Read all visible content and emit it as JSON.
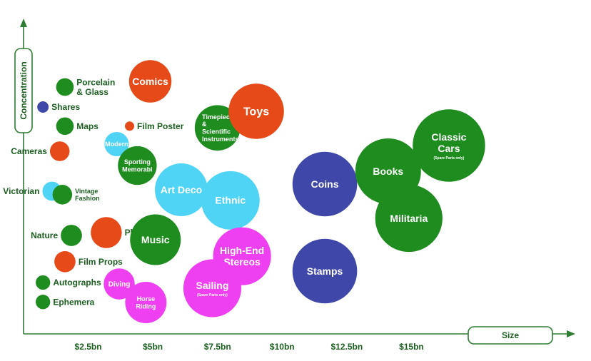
{
  "chart_data": {
    "type": "scatter",
    "xlabel": "Size",
    "ylabel": "Concentration",
    "x_ticks": [
      {
        "value": 2.5,
        "label": "$2.5bn"
      },
      {
        "value": 5,
        "label": "$5bn"
      },
      {
        "value": 7.5,
        "label": "$7.5bn"
      },
      {
        "value": 10,
        "label": "$10bn"
      },
      {
        "value": 12.5,
        "label": "$12.5bn"
      },
      {
        "value": 15,
        "label": "$15bn"
      }
    ],
    "xlim": [
      0,
      22
    ],
    "ylim": [
      0,
      10
    ],
    "colors": {
      "green": "#1e8c1e",
      "red": "#e64a19",
      "blue": "#3f48a8",
      "cyan": "#4fd4f5",
      "magenta": "#ee3ff0",
      "axis": "#2e7d32"
    },
    "points": [
      {
        "label": "Porcelain\n& Glass",
        "x": 1.6,
        "y": 8.65,
        "r": 0.34,
        "color": "green",
        "label_pos": "right",
        "font": 12,
        "text": "dark"
      },
      {
        "label": "Shares",
        "x": 0.75,
        "y": 7.95,
        "r": 0.22,
        "color": "blue",
        "label_pos": "right",
        "font": 12,
        "text": "dark"
      },
      {
        "label": "Maps",
        "x": 1.6,
        "y": 7.28,
        "r": 0.34,
        "color": "green",
        "label_pos": "right",
        "font": 12,
        "text": "dark"
      },
      {
        "label": "Film Poster",
        "x": 4.1,
        "y": 7.28,
        "r": 0.18,
        "color": "red",
        "label_pos": "right",
        "font": 12,
        "text": "dark"
      },
      {
        "label": "Comics",
        "x": 4.9,
        "y": 8.85,
        "r": 0.82,
        "color": "red",
        "label_pos": "center",
        "font": 14,
        "text": "light"
      },
      {
        "label": "Timepieces\n&\nScientific\nInstruments",
        "x": 7.5,
        "y": 7.22,
        "r": 0.88,
        "color": "green",
        "label_pos": "center",
        "font": 9,
        "text": "light",
        "align": "left"
      },
      {
        "label": "Toys",
        "x": 9.0,
        "y": 7.8,
        "r": 1.07,
        "color": "red",
        "label_pos": "center",
        "font": 16,
        "text": "light"
      },
      {
        "label": "Cameras",
        "x": 1.4,
        "y": 6.4,
        "r": 0.38,
        "color": "red",
        "label_pos": "left",
        "font": 12,
        "text": "dark"
      },
      {
        "label": "Modern",
        "x": 3.6,
        "y": 6.65,
        "r": 0.47,
        "color": "cyan",
        "label_pos": "center",
        "font": 9,
        "text": "light"
      },
      {
        "label": "Sporting\nMemorabi",
        "x": 4.4,
        "y": 5.9,
        "r": 0.75,
        "color": "green",
        "label_pos": "center",
        "font": 9,
        "text": "light"
      },
      {
        "label": "Victorian",
        "x": 1.1,
        "y": 5.0,
        "r": 0.37,
        "color": "cyan",
        "label_pos": "left",
        "font": 12,
        "text": "dark"
      },
      {
        "label": "Vintage\nFashion",
        "x": 1.5,
        "y": 4.88,
        "r": 0.38,
        "color": "green",
        "label_pos": "right",
        "font": 9,
        "text": "dark"
      },
      {
        "label": "Art Deco",
        "x": 6.1,
        "y": 5.05,
        "r": 1.02,
        "color": "cyan",
        "label_pos": "center",
        "font": 14,
        "text": "light"
      },
      {
        "label": "Ethnic",
        "x": 8.0,
        "y": 4.68,
        "r": 1.13,
        "color": "cyan",
        "label_pos": "center",
        "font": 14,
        "text": "light"
      },
      {
        "label": "Nature",
        "x": 1.85,
        "y": 3.45,
        "r": 0.41,
        "color": "green",
        "label_pos": "left",
        "font": 12,
        "text": "dark"
      },
      {
        "label": "Photos",
        "x": 3.2,
        "y": 3.55,
        "r": 0.6,
        "color": "red",
        "label_pos": "right",
        "font": 12,
        "text": "dark"
      },
      {
        "label": "Music",
        "x": 5.1,
        "y": 3.3,
        "r": 0.98,
        "color": "green",
        "label_pos": "center",
        "font": 14,
        "text": "light"
      },
      {
        "label": "High-End\nStereos",
        "x": 8.45,
        "y": 2.72,
        "r": 1.12,
        "color": "magenta",
        "label_pos": "center",
        "font": 14,
        "text": "light"
      },
      {
        "label": "Film Props",
        "x": 1.6,
        "y": 2.53,
        "r": 0.41,
        "color": "red",
        "label_pos": "right",
        "font": 12,
        "text": "dark"
      },
      {
        "label": "Autographs",
        "x": 0.75,
        "y": 1.8,
        "r": 0.28,
        "color": "green",
        "label_pos": "right",
        "font": 12,
        "text": "dark"
      },
      {
        "label": "Diving",
        "x": 3.7,
        "y": 1.75,
        "r": 0.6,
        "color": "magenta",
        "label_pos": "center",
        "font": 10,
        "text": "light"
      },
      {
        "label": "Horse\nRiding",
        "x": 4.73,
        "y": 1.1,
        "r": 0.8,
        "color": "magenta",
        "label_pos": "center",
        "font": 9,
        "text": "light"
      },
      {
        "label": "Sailing",
        "x": 7.3,
        "y": 1.6,
        "r": 1.12,
        "color": "magenta",
        "label_pos": "center",
        "font": 14,
        "text": "light",
        "sub": "(Spare Parts only)"
      },
      {
        "label": "Ephemera",
        "x": 0.75,
        "y": 1.12,
        "r": 0.28,
        "color": "green",
        "label_pos": "right",
        "font": 12,
        "text": "dark"
      },
      {
        "label": "Coins",
        "x": 11.65,
        "y": 5.25,
        "r": 1.25,
        "color": "blue",
        "label_pos": "center",
        "font": 14,
        "text": "light"
      },
      {
        "label": "Stamps",
        "x": 11.65,
        "y": 2.2,
        "r": 1.25,
        "color": "blue",
        "label_pos": "center",
        "font": 14,
        "text": "light"
      },
      {
        "label": "Books",
        "x": 14.1,
        "y": 5.7,
        "r": 1.27,
        "color": "green",
        "label_pos": "center",
        "font": 14,
        "text": "light"
      },
      {
        "label": "Militaria",
        "x": 14.9,
        "y": 4.05,
        "r": 1.3,
        "color": "green",
        "label_pos": "center",
        "font": 14,
        "text": "light"
      },
      {
        "label": "Classic\nCars",
        "x": 16.45,
        "y": 6.6,
        "r": 1.4,
        "color": "green",
        "label_pos": "center",
        "font": 14,
        "text": "light",
        "sub": "(Spare Parts only)"
      }
    ]
  }
}
